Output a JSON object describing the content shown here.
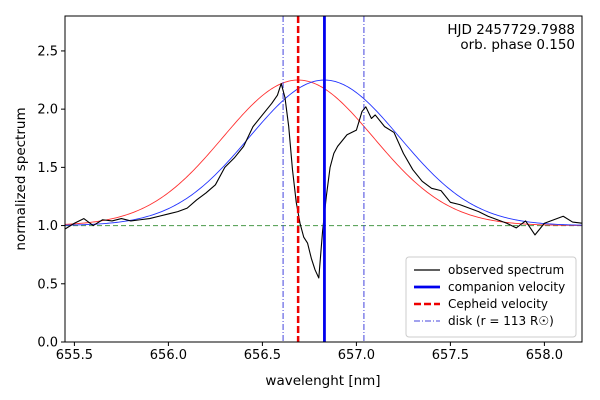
{
  "chart_data": {
    "type": "line",
    "xlabel": "wavelenght [nm]",
    "ylabel": "normalized spectrum",
    "xlim": [
      655.45,
      658.2
    ],
    "ylim": [
      0.0,
      2.8
    ],
    "xticks": [
      655.5,
      656.0,
      656.5,
      657.0,
      657.5,
      658.0
    ],
    "xtick_labels": [
      "655.5",
      "656.0",
      "656.5",
      "657.0",
      "657.5",
      "658.0"
    ],
    "yticks": [
      0.0,
      0.5,
      1.0,
      1.5,
      2.0,
      2.5
    ],
    "ytick_labels": [
      "0.0",
      "0.5",
      "1.0",
      "1.5",
      "2.0",
      "2.5"
    ],
    "annotations": [
      "HJD 2457729.7988",
      "orb. phase 0.150"
    ],
    "baseline": {
      "y": 1.0,
      "color": "#4a9a4a"
    },
    "vertical_lines": {
      "companion_velocity": {
        "x": 656.83,
        "color": "#0000ee"
      },
      "cepheid_velocity": {
        "x": 656.69,
        "color": "#ee0000"
      },
      "disk_left": {
        "x": 656.61,
        "color": "#4444dd"
      },
      "disk_right": {
        "x": 657.04,
        "color": "#4444dd"
      }
    },
    "series": [
      {
        "name": "red gaussian (Cepheid)",
        "color": "#ff3030",
        "center": 656.69,
        "amplitude": 1.25,
        "sigma": 0.4,
        "offset": 1.0,
        "x_range": [
          655.45,
          658.2
        ]
      },
      {
        "name": "blue gaussian (companion)",
        "color": "#2233ff",
        "center": 656.83,
        "amplitude": 1.25,
        "sigma": 0.4,
        "offset": 1.0,
        "x_range": [
          655.45,
          658.2
        ]
      },
      {
        "name": "observed spectrum",
        "color": "#000000",
        "x": [
          655.45,
          655.5,
          655.55,
          655.6,
          655.65,
          655.7,
          655.75,
          655.8,
          655.85,
          655.9,
          655.95,
          656.0,
          656.05,
          656.1,
          656.15,
          656.2,
          656.25,
          656.3,
          656.35,
          656.4,
          656.45,
          656.5,
          656.55,
          656.58,
          656.6,
          656.62,
          656.64,
          656.66,
          656.68,
          656.7,
          656.72,
          656.74,
          656.76,
          656.78,
          656.8,
          656.82,
          656.84,
          656.86,
          656.88,
          656.9,
          656.92,
          656.95,
          657.0,
          657.03,
          657.05,
          657.08,
          657.1,
          657.15,
          657.2,
          657.25,
          657.3,
          657.35,
          657.4,
          657.45,
          657.5,
          657.55,
          657.6,
          657.65,
          657.7,
          657.75,
          657.8,
          657.85,
          657.9,
          657.95,
          658.0,
          658.05,
          658.1,
          658.15,
          658.2
        ],
        "y": [
          0.97,
          1.02,
          1.06,
          1.0,
          1.05,
          1.04,
          1.06,
          1.04,
          1.05,
          1.06,
          1.08,
          1.1,
          1.12,
          1.15,
          1.22,
          1.28,
          1.35,
          1.5,
          1.58,
          1.68,
          1.85,
          1.95,
          2.05,
          2.12,
          2.22,
          2.1,
          1.85,
          1.48,
          1.2,
          1.02,
          0.9,
          0.85,
          0.72,
          0.62,
          0.55,
          0.95,
          1.25,
          1.5,
          1.62,
          1.68,
          1.72,
          1.78,
          1.82,
          1.98,
          2.02,
          1.92,
          1.95,
          1.85,
          1.8,
          1.62,
          1.48,
          1.38,
          1.32,
          1.3,
          1.2,
          1.18,
          1.15,
          1.12,
          1.08,
          1.05,
          1.02,
          0.98,
          1.04,
          0.92,
          1.02,
          1.05,
          1.08,
          1.03,
          1.02
        ]
      }
    ],
    "legend": {
      "placement": "lower-right",
      "entries": [
        {
          "label": "observed spectrum",
          "color": "#000000",
          "style": "solid-thin"
        },
        {
          "label": "companion velocity",
          "color": "#0000ee",
          "style": "solid-thick"
        },
        {
          "label": "Cepheid velocity",
          "color": "#ee0000",
          "style": "dashed-thick"
        },
        {
          "label": "disk (r = 113 R☉)",
          "color": "#4444dd",
          "style": "dashdot"
        }
      ]
    }
  }
}
